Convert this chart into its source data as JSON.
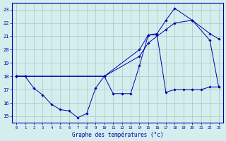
{
  "title": "Graphe des températures (°c)",
  "bg_color": "#d4eeed",
  "grid_color": "#aacfcc",
  "line_color": "#0000aa",
  "xlim": [
    -0.5,
    23.5
  ],
  "ylim": [
    14.5,
    23.5
  ],
  "yticks": [
    15,
    16,
    17,
    18,
    19,
    20,
    21,
    22,
    23
  ],
  "xticks": [
    0,
    1,
    2,
    3,
    4,
    5,
    6,
    7,
    8,
    9,
    10,
    11,
    12,
    13,
    14,
    15,
    16,
    17,
    18,
    19,
    20,
    21,
    22,
    23
  ],
  "series1_x": [
    0,
    1,
    2,
    3,
    4,
    5,
    6,
    7,
    8,
    9,
    10,
    11,
    12,
    13,
    14,
    15,
    16,
    17,
    18,
    19,
    20,
    21,
    22,
    23
  ],
  "series1_y": [
    18.0,
    18.0,
    17.1,
    16.6,
    15.9,
    15.5,
    15.4,
    14.9,
    15.2,
    17.1,
    18.0,
    16.7,
    16.7,
    16.7,
    18.8,
    21.1,
    21.1,
    16.8,
    17.0,
    17.0,
    17.0,
    17.0,
    17.2,
    17.2
  ],
  "series2_x": [
    0,
    10,
    14,
    15,
    17,
    18,
    20,
    22,
    23
  ],
  "series2_y": [
    18.0,
    18.0,
    19.5,
    20.5,
    21.5,
    22.0,
    22.2,
    21.2,
    20.8
  ],
  "series3_x": [
    0,
    10,
    14,
    15,
    16,
    17,
    18,
    20,
    22,
    23
  ],
  "series3_y": [
    18.0,
    18.0,
    20.0,
    21.1,
    21.2,
    22.2,
    23.1,
    22.2,
    20.7,
    17.2
  ]
}
